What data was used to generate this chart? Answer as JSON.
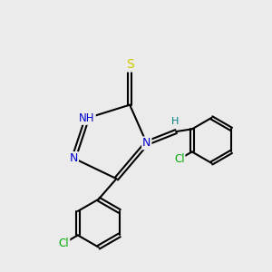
{
  "background_color": "#ebebeb",
  "atom_colors": {
    "N": "#0000cc",
    "H": "#008080",
    "S": "#cccc00",
    "Cl": "#00aa00"
  },
  "bond_color": "#000000",
  "bond_width": 1.5
}
